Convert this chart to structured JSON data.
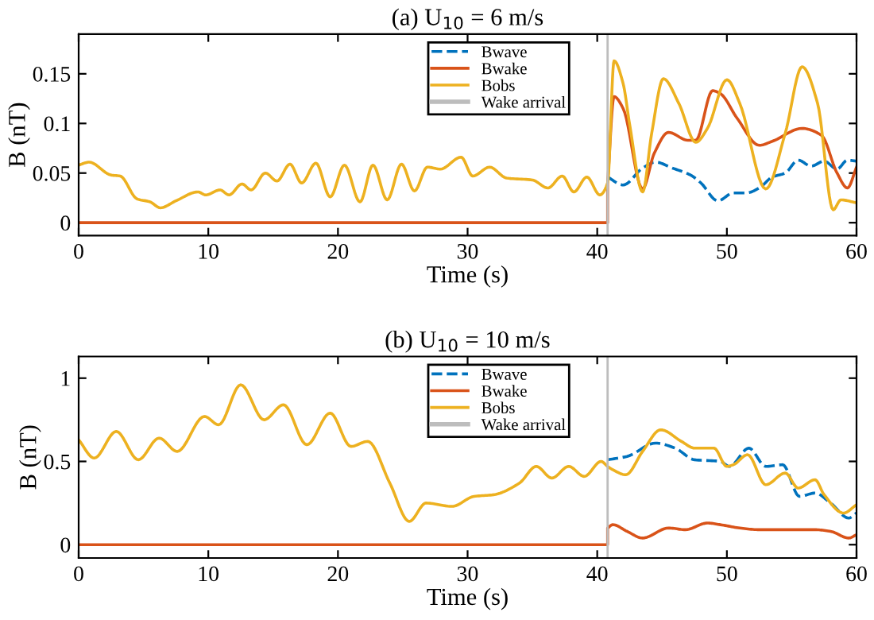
{
  "chart_data": [
    {
      "type": "line",
      "title": "(a) U$_{10}$ = 6 m/s",
      "xlabel": "Time (s)",
      "ylabel": "B (nT)",
      "xlim": [
        0,
        60
      ],
      "xticks": [
        0,
        10,
        20,
        30,
        40,
        50,
        60
      ],
      "ylim": [
        -0.013,
        0.19
      ],
      "yticks": [
        0,
        0.05,
        0.1,
        0.15
      ],
      "legend": "top",
      "grid": false,
      "marker": "none",
      "series": [
        {
          "name": "Bwave",
          "color": "#0072bd",
          "line_style": "dashed",
          "x": [
            40.8,
            42,
            43.5,
            44.5,
            45.8,
            47.2,
            48,
            49.3,
            50.5,
            51.5,
            52.5,
            53.5,
            54.5,
            55.5,
            56.5,
            57.5,
            58.5,
            59.3,
            60
          ],
          "values": [
            0.046,
            0.038,
            0.055,
            0.061,
            0.055,
            0.048,
            0.04,
            0.022,
            0.03,
            0.03,
            0.035,
            0.046,
            0.05,
            0.063,
            0.057,
            0.062,
            0.054,
            0.063,
            0.062
          ]
        },
        {
          "name": "Bwake",
          "color": "#d95319",
          "line_style": "solid",
          "x": [
            0,
            40.8,
            40.8,
            41.3,
            42,
            43.5,
            44.4,
            45.5,
            47,
            47.6,
            48.9,
            49.5,
            50.8,
            52.5,
            53.5,
            55.8,
            57.3,
            58.5,
            59.3,
            60
          ],
          "values": [
            0,
            0,
            0.04,
            0.127,
            0.115,
            0.034,
            0.07,
            0.091,
            0.083,
            0.083,
            0.133,
            0.13,
            0.105,
            0.078,
            0.082,
            0.095,
            0.088,
            0.05,
            0.035,
            0.056
          ]
        },
        {
          "name": "Bobs",
          "color": "#edb120",
          "line_style": "solid",
          "x": [
            0,
            0.8,
            2.5,
            3.2,
            4.5,
            5.5,
            6.3,
            7.5,
            9.2,
            9.8,
            10.9,
            11.6,
            12.6,
            13.3,
            14.4,
            15.3,
            16.3,
            17.2,
            18.3,
            19.4,
            20.5,
            21.7,
            22.7,
            23.8,
            24.9,
            25.9,
            26.9,
            27.9,
            29.5,
            30.4,
            31.7,
            33,
            35,
            36.2,
            37.3,
            38.2,
            39.2,
            40.2,
            40.8,
            41.3,
            42,
            42.5,
            43.5,
            44.2,
            45.1,
            46.3,
            47.6,
            48.5,
            50,
            51,
            53,
            54.5,
            55.8,
            57,
            58.2,
            58.8,
            60
          ],
          "values": [
            0.058,
            0.061,
            0.048,
            0.047,
            0.024,
            0.021,
            0.015,
            0.022,
            0.031,
            0.028,
            0.033,
            0.028,
            0.039,
            0.033,
            0.05,
            0.042,
            0.059,
            0.04,
            0.06,
            0.026,
            0.058,
            0.021,
            0.058,
            0.023,
            0.059,
            0.032,
            0.056,
            0.054,
            0.066,
            0.047,
            0.056,
            0.045,
            0.043,
            0.035,
            0.047,
            0.031,
            0.046,
            0.028,
            0.04,
            0.163,
            0.14,
            0.099,
            0.031,
            0.09,
            0.145,
            0.12,
            0.081,
            0.095,
            0.144,
            0.12,
            0.034,
            0.09,
            0.157,
            0.12,
            0.013,
            0.023,
            0.02
          ]
        }
      ],
      "ref_lines": [
        {
          "axis": "x",
          "value": 40.8,
          "label": "Wake arrival",
          "color": "#bdbdbd",
          "line_style": "solid"
        }
      ]
    },
    {
      "type": "line",
      "title": "(b) U$_{10}$ = 10 m/s",
      "xlabel": "Time (s)",
      "ylabel": "B (nT)",
      "xlim": [
        0,
        60
      ],
      "xticks": [
        0,
        10,
        20,
        30,
        40,
        50,
        60
      ],
      "ylim": [
        -0.08,
        1.13
      ],
      "yticks": [
        0,
        0.5,
        1
      ],
      "legend": "top",
      "grid": false,
      "marker": "none",
      "series": [
        {
          "name": "Bwave",
          "color": "#0072bd",
          "line_style": "dashed",
          "x": [
            40.8,
            42.3,
            44.5,
            46,
            47.5,
            49.5,
            50.2,
            51.7,
            53,
            54.3,
            55.6,
            56.8,
            58,
            59.4,
            60
          ],
          "values": [
            0.51,
            0.53,
            0.61,
            0.58,
            0.51,
            0.5,
            0.47,
            0.58,
            0.47,
            0.48,
            0.29,
            0.31,
            0.25,
            0.16,
            0.19
          ]
        },
        {
          "name": "Bwake",
          "color": "#d95319",
          "line_style": "solid",
          "x": [
            0,
            40.8,
            40.8,
            41.2,
            42.3,
            43.5,
            45.5,
            46.8,
            48.5,
            49.5,
            51,
            52.5,
            55,
            56.8,
            58,
            59.4,
            60
          ],
          "values": [
            0,
            0,
            0.1,
            0.12,
            0.08,
            0.04,
            0.1,
            0.09,
            0.13,
            0.12,
            0.1,
            0.09,
            0.09,
            0.09,
            0.08,
            0.04,
            0.06
          ]
        },
        {
          "name": "Bobs",
          "color": "#edb120",
          "line_style": "solid",
          "x": [
            0,
            1.2,
            2.9,
            4.6,
            6.2,
            7.6,
            9.7,
            10.8,
            12.5,
            14.3,
            15.8,
            17.6,
            19.4,
            21,
            22.3,
            24,
            25.5,
            26.8,
            28.8,
            30.5,
            32,
            34,
            35.3,
            36.5,
            37.8,
            39,
            40.3,
            40.8,
            41.2,
            42.2,
            43.5,
            44.9,
            46.5,
            47.5,
            49,
            50,
            50.5,
            51.6,
            53,
            54.5,
            55.5,
            56.8,
            57.5,
            59,
            60
          ],
          "values": [
            0.63,
            0.52,
            0.68,
            0.51,
            0.64,
            0.56,
            0.77,
            0.72,
            0.96,
            0.75,
            0.84,
            0.6,
            0.79,
            0.59,
            0.62,
            0.37,
            0.14,
            0.25,
            0.23,
            0.29,
            0.3,
            0.37,
            0.47,
            0.4,
            0.47,
            0.41,
            0.5,
            0.47,
            0.45,
            0.42,
            0.56,
            0.69,
            0.62,
            0.58,
            0.58,
            0.47,
            0.48,
            0.54,
            0.36,
            0.43,
            0.34,
            0.39,
            0.3,
            0.19,
            0.24
          ]
        }
      ],
      "ref_lines": [
        {
          "axis": "x",
          "value": 40.8,
          "label": "Wake arrival",
          "color": "#bdbdbd",
          "line_style": "solid"
        }
      ]
    }
  ]
}
